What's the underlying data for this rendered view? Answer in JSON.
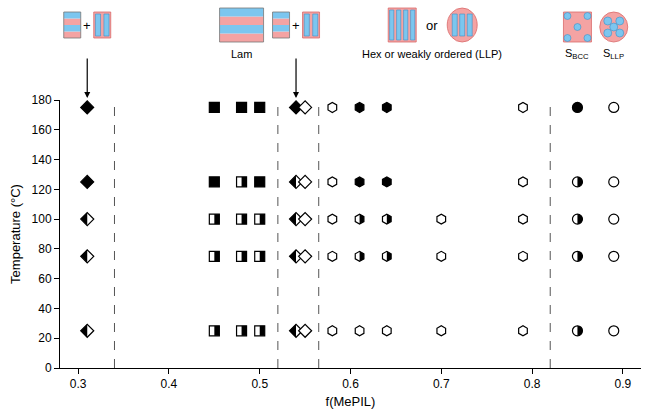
{
  "chart_data": {
    "type": "scatter",
    "x_label": "f(MePIL)",
    "y_label": "Temperature (°C)",
    "xlim": [
      0.28,
      0.92
    ],
    "ylim": [
      0,
      180
    ],
    "xticks": [
      0.3,
      0.4,
      0.5,
      0.6,
      0.7,
      0.8,
      0.9
    ],
    "yticks": [
      0,
      20,
      40,
      60,
      80,
      100,
      120,
      140,
      160,
      180
    ],
    "grid": false,
    "boundaries": [
      0.34,
      0.52,
      0.565,
      0.82
    ],
    "line_style": "dashed",
    "series": [
      {
        "marker": "diamond",
        "x": [
          0.31,
          0.31,
          0.31,
          0.31,
          0.31,
          0.54,
          0.54,
          0.54,
          0.54,
          0.54,
          0.55,
          0.55,
          0.55,
          0.55,
          0.55
        ],
        "y": [
          175,
          125,
          100,
          75,
          25,
          175,
          125,
          100,
          75,
          25,
          175,
          125,
          100,
          75,
          25
        ],
        "fill": [
          "filled",
          "filled",
          "half",
          "half",
          "half",
          "filled",
          "half",
          "half",
          "half",
          "half",
          "open",
          "open",
          "open",
          "open",
          "open"
        ]
      },
      {
        "marker": "square",
        "x": [
          0.45,
          0.45,
          0.45,
          0.45,
          0.45,
          0.48,
          0.48,
          0.48,
          0.48,
          0.48,
          0.5,
          0.5,
          0.5,
          0.5,
          0.5
        ],
        "y": [
          175,
          125,
          100,
          75,
          25,
          175,
          125,
          100,
          75,
          25,
          175,
          125,
          100,
          75,
          25
        ],
        "fill": [
          "filled",
          "filled",
          "half",
          "half",
          "half",
          "filled",
          "half",
          "half",
          "half",
          "half",
          "filled",
          "filled",
          "half",
          "half",
          "half"
        ]
      },
      {
        "marker": "hexagon",
        "x": [
          0.58,
          0.58,
          0.58,
          0.58,
          0.58,
          0.61,
          0.61,
          0.61,
          0.61,
          0.61,
          0.64,
          0.64,
          0.64,
          0.64,
          0.64,
          0.7,
          0.7,
          0.7,
          0.79,
          0.79,
          0.79,
          0.79,
          0.79
        ],
        "y": [
          175,
          125,
          100,
          75,
          25,
          175,
          125,
          100,
          75,
          25,
          175,
          125,
          100,
          75,
          25,
          100,
          75,
          25,
          175,
          125,
          100,
          75,
          25
        ],
        "fill": [
          "open",
          "open",
          "open",
          "open",
          "open",
          "filled",
          "filled",
          "half",
          "half",
          "open",
          "filled",
          "filled",
          "half",
          "half",
          "open",
          "open",
          "open",
          "open",
          "open",
          "open",
          "open",
          "open",
          "open"
        ]
      },
      {
        "marker": "circle",
        "x": [
          0.85,
          0.85,
          0.85,
          0.85,
          0.85,
          0.89,
          0.89,
          0.89,
          0.89,
          0.89
        ],
        "y": [
          175,
          125,
          100,
          75,
          25,
          175,
          125,
          100,
          75,
          25
        ],
        "fill": [
          "filled",
          "half",
          "half",
          "half",
          "half",
          "open",
          "open",
          "open",
          "open",
          "open"
        ]
      }
    ],
    "annotations": [
      {
        "text": "+",
        "x": 0.31,
        "marker": "lam+hex"
      },
      {
        "text": "Lam",
        "x": 0.48,
        "marker": "lam"
      },
      {
        "text": "+",
        "x": 0.54,
        "marker": "lam+hex"
      },
      {
        "text": "or",
        "x": 0.69,
        "marker": "hex-or-llp"
      },
      {
        "text": "Hex or weakly ordered (LLP)",
        "x": 0.69
      },
      {
        "text": "S",
        "subscript": "BCC",
        "x": 0.85,
        "marker": "bcc"
      },
      {
        "text": "S",
        "subscript": "LLP",
        "x": 0.89,
        "marker": "llp"
      }
    ]
  }
}
